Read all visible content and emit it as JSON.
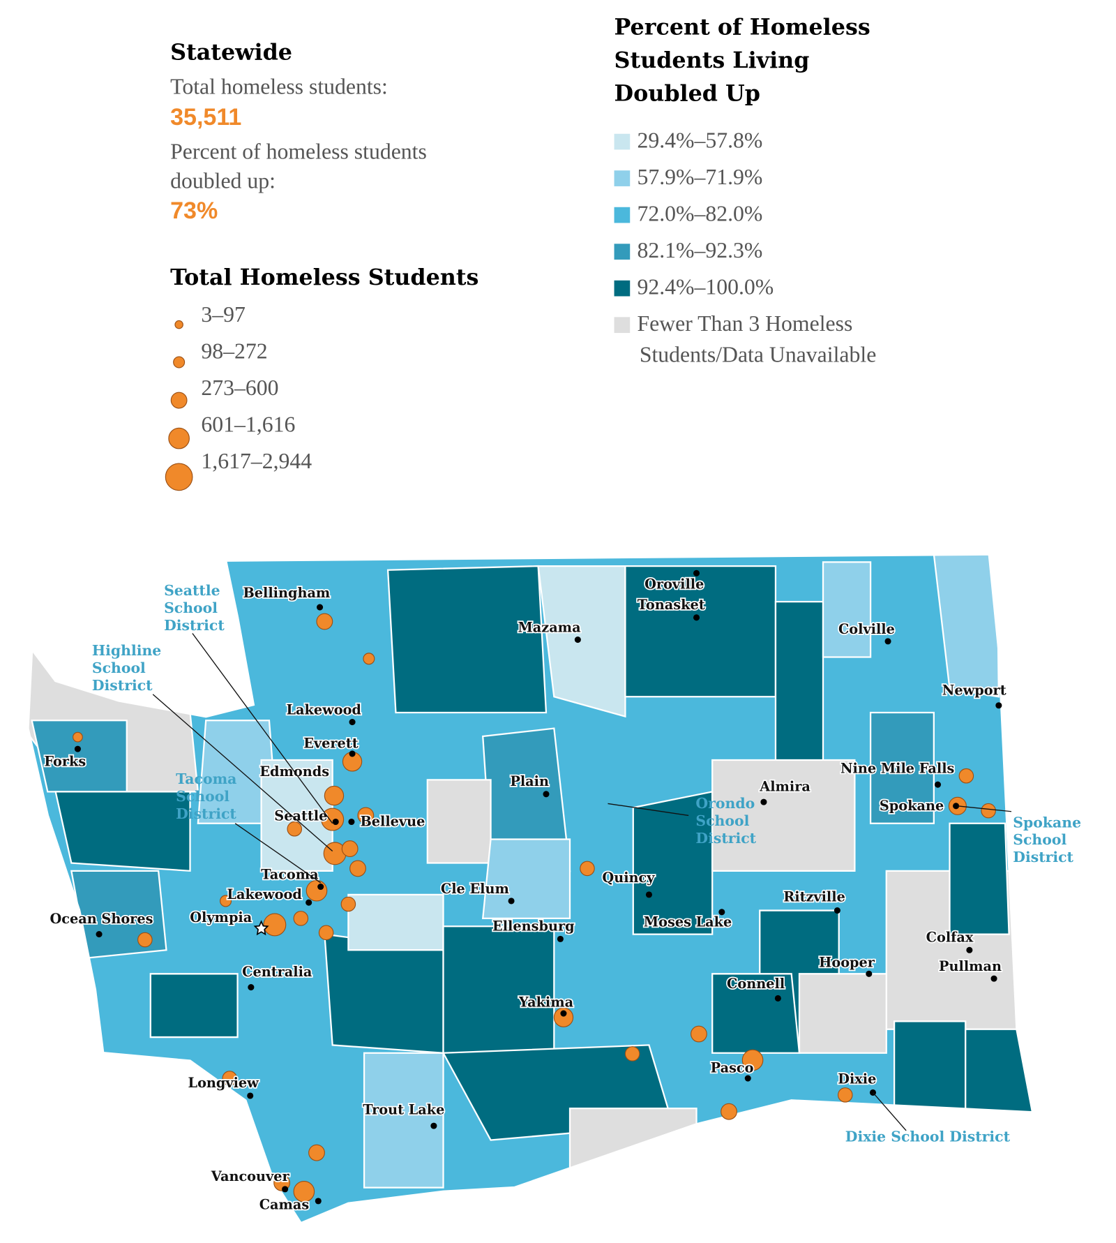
{
  "statewide": {
    "title": "Statewide",
    "total_label": "Total homeless students:",
    "total_value": "35,511",
    "percent_label_lines": [
      "Percent of homeless students",
      "doubled up:"
    ],
    "percent_value": "73%"
  },
  "size_legend": {
    "title": "Total Homeless Students",
    "items": [
      "3–97",
      "98–272",
      "273–600",
      "601–1,616",
      "1,617–2,944"
    ]
  },
  "color_legend": {
    "title_lines": [
      "Percent of Homeless",
      "Students Living",
      "Doubled Up"
    ],
    "items": [
      {
        "label_lines": [
          "29.4%–57.8%"
        ],
        "color": "#c9e6ef"
      },
      {
        "label_lines": [
          "57.9%–71.9%"
        ],
        "color": "#8fd0ea"
      },
      {
        "label_lines": [
          "72.0%–82.0%"
        ],
        "color": "#4bb8dc"
      },
      {
        "label_lines": [
          "82.1%–92.3%"
        ],
        "color": "#339bbb"
      },
      {
        "label_lines": [
          "92.4%–100.0%"
        ],
        "color": "#006c80"
      },
      {
        "label_lines": [
          "Fewer Than 3 Homeless",
          "Students/Data Unavailable"
        ],
        "color": "#dedede"
      }
    ]
  },
  "cities": [
    {
      "label": "Bellingham"
    },
    {
      "label": "Oroville"
    },
    {
      "label": "Tonasket"
    },
    {
      "label": "Mazama"
    },
    {
      "label": "Colville"
    },
    {
      "label": "Newport"
    },
    {
      "label": "Lakewood"
    },
    {
      "label": "Everett"
    },
    {
      "label": "Forks"
    },
    {
      "label": "Edmonds"
    },
    {
      "label": "Plain"
    },
    {
      "label": "Almira"
    },
    {
      "label": "Nine Mile Falls"
    },
    {
      "label": "Spokane"
    },
    {
      "label": "Seattle"
    },
    {
      "label": "Bellevue"
    },
    {
      "label": "Tacoma"
    },
    {
      "label": "Lakewood"
    },
    {
      "label": "Cle Elum"
    },
    {
      "label": "Quincy"
    },
    {
      "label": "Ritzville"
    },
    {
      "label": "Olympia"
    },
    {
      "label": "Ocean Shores"
    },
    {
      "label": "Moses Lake"
    },
    {
      "label": "Ellensburg"
    },
    {
      "label": "Colfax"
    },
    {
      "label": "Hooper"
    },
    {
      "label": "Pullman"
    },
    {
      "label": "Centralia"
    },
    {
      "label": "Connell"
    },
    {
      "label": "Yakima"
    },
    {
      "label": "Pasco"
    },
    {
      "label": "Dixie"
    },
    {
      "label": "Longview"
    },
    {
      "label": "Trout Lake"
    },
    {
      "label": "Vancouver"
    },
    {
      "label": "Camas"
    }
  ],
  "callouts": [
    {
      "lines": [
        "Seattle",
        "School",
        "District"
      ]
    },
    {
      "lines": [
        "Highline",
        "School",
        "District"
      ]
    },
    {
      "lines": [
        "Tacoma",
        "School",
        "District"
      ]
    },
    {
      "lines": [
        "Orondo",
        "School",
        "District"
      ]
    },
    {
      "lines": [
        "Spokane",
        "School",
        "District"
      ]
    },
    {
      "lines": [
        "Dixie School District"
      ]
    }
  ]
}
